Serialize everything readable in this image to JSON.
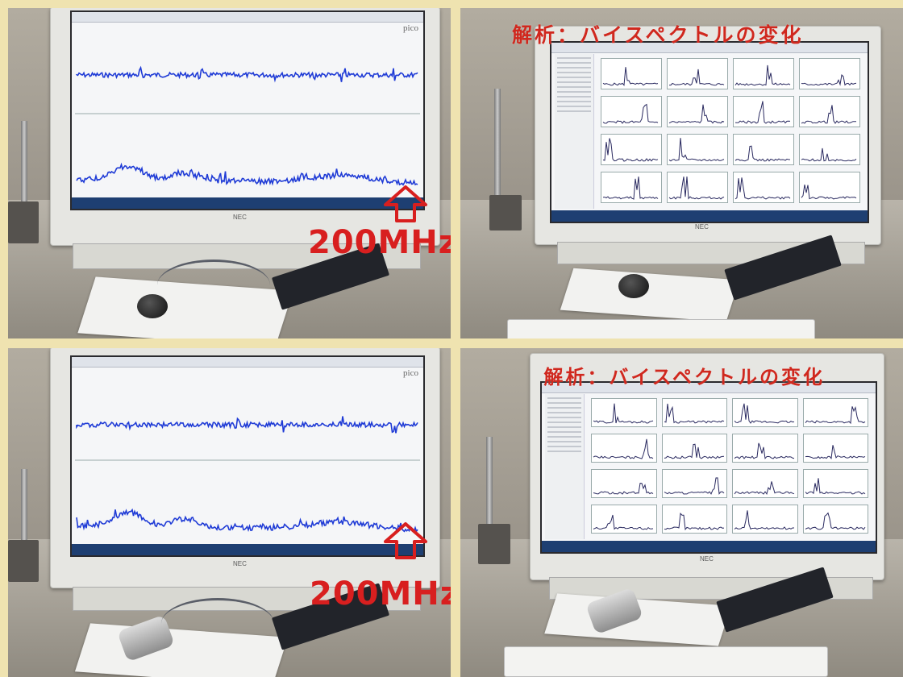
{
  "panels": [
    {
      "id": "top-left",
      "frequency_label": "200MHz"
    },
    {
      "id": "top-right",
      "analysis_label": "解析：バイスペクトルの変化"
    },
    {
      "id": "bottom-left",
      "frequency_label": "200MHz"
    },
    {
      "id": "bottom-right",
      "analysis_label": "解析：バイスペクトルの変化"
    }
  ],
  "monitor_brand": "NEC",
  "software_logo": "pico",
  "colors": {
    "frame_background": "#efe3b0",
    "overlay_text": "#d0281e",
    "waveform": "#1f3bd6",
    "spectrum": "#2a2a60"
  },
  "icons": [
    "up-arrow-icon"
  ]
}
